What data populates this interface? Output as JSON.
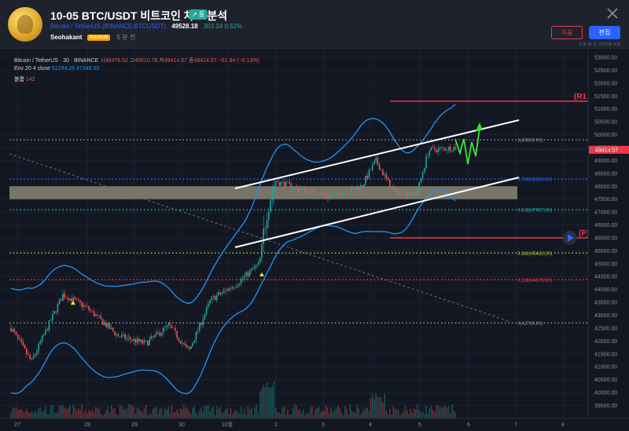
{
  "header": {
    "title": "10-05 BTC/USDT 비트코인 차트 분석",
    "trend_badge": "↗ 롱",
    "symbol_text": "Bitcoin / TetherUS (BINANCE:BTCUSDT)",
    "price": "49528.18",
    "change": "303.24 0.62%",
    "author": "Seohakant",
    "premium_badge": "PREMIUM",
    "time_ago": "5 분 전",
    "delete_label": "지움",
    "edit_label": "편집",
    "edit_time": "9 분 46 초 그리기를 수정"
  },
  "legend": {
    "symbol": "Bitcoin / TetherUS · 30 · BINANCE",
    "o_label": "시",
    "o_value": "49476.52",
    "h_label": "고",
    "h_value": "49510.78",
    "l_label": "저",
    "l_value": "49414.57",
    "c_label": "종",
    "c_value": "49414.57",
    "change_value": "−61.94 (−0.13%)",
    "env_label": "Env 20 4 close",
    "env_upper": "51294.26",
    "env_lower": "47348.55",
    "vol_label": "볼륨",
    "vol_value": "142"
  },
  "colors": {
    "background": "#131722",
    "band": "#2196f3",
    "resistance": "#f23645",
    "channel": "#ffffff",
    "arrow": "#39e639",
    "zone": "#c8c2a0",
    "up": "#26a69a",
    "down": "#ef5350"
  },
  "price_axis": {
    "ticks": [
      53000,
      52500,
      52000,
      51500,
      51000,
      50500,
      50000,
      49500,
      49000,
      48500,
      48000,
      47500,
      47000,
      46500,
      46000,
      45500,
      45000,
      44500,
      44000,
      43500,
      43000,
      42500,
      42000,
      41500,
      41000,
      40500,
      40000,
      39500
    ],
    "current_price_label": "49414.57"
  },
  "time_axis": {
    "labels": [
      "27",
      "28",
      "29",
      "30",
      "10월",
      "2",
      "3",
      "4",
      "5",
      "6",
      "7",
      "8"
    ]
  },
  "fib_levels": [
    {
      "label": "1(49800.00)",
      "price": 49800,
      "color": "#8a8f9c"
    },
    {
      "label": "0.786(48280.60)",
      "price": 48280.6,
      "color": "#2962ff"
    },
    {
      "label": "0.618(47087.80)",
      "price": 47087.8,
      "color": "#26a69a"
    },
    {
      "label": "0.382(45412.20)",
      "price": 45412.2,
      "color": "#9acd32"
    },
    {
      "label": "0.236(44375.60)",
      "price": 44375.6,
      "color": "#f23645"
    },
    {
      "label": "0(42700.00)",
      "price": 42700,
      "color": "#8a8f9c"
    }
  ],
  "annotations": {
    "r1_label": "(R1",
    "p_label": "(P)"
  }
}
